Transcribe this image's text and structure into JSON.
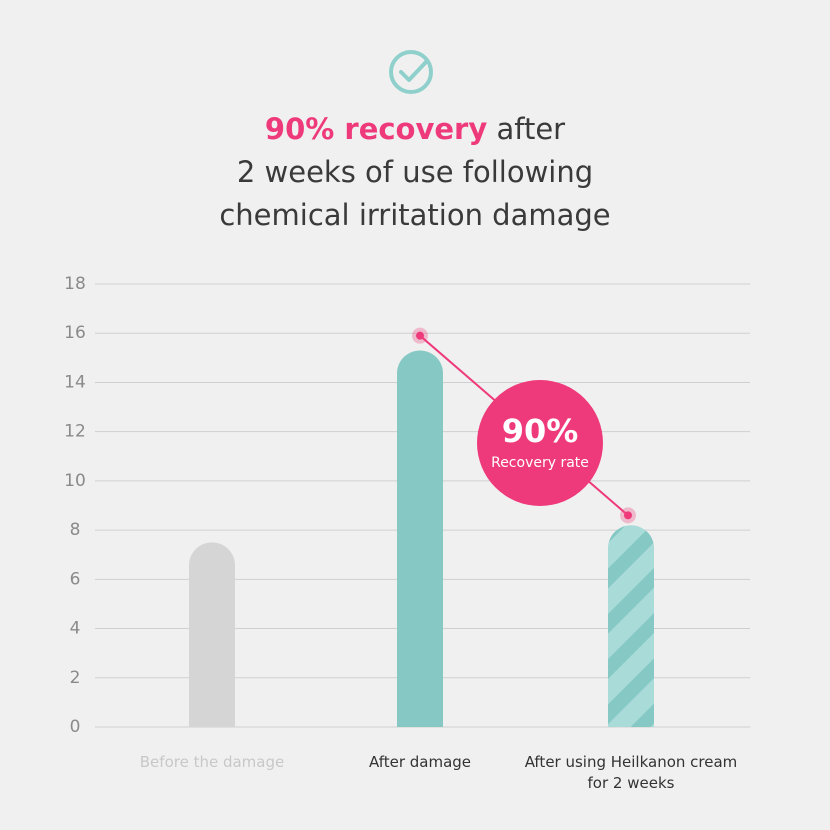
{
  "chart_data": {
    "type": "bar",
    "title_emphasis": "90% recovery",
    "title_rest": "after",
    "title_lines": [
      "2 weeks of use following",
      "chemical irritation damage"
    ],
    "categories": [
      "Before the damage",
      "After damage",
      "After using Heilkanon cream for 2 weeks"
    ],
    "values": [
      7.5,
      15.3,
      8.2
    ],
    "colors": [
      "#d5d5d5",
      "#85c8c4",
      "#85c8c4"
    ],
    "hatch": [
      false,
      false,
      true
    ],
    "label_colors": [
      "#c8c8c8",
      "#333333",
      "#333333"
    ],
    "ylim": [
      0,
      18
    ],
    "yticks": [
      0,
      2,
      4,
      6,
      8,
      10,
      12,
      14,
      16,
      18
    ],
    "grid": true,
    "annotation": {
      "value_label": "90%",
      "text": "Recovery rate",
      "from": 15.9,
      "to": 8.6,
      "color": "#ee3a7a"
    }
  }
}
